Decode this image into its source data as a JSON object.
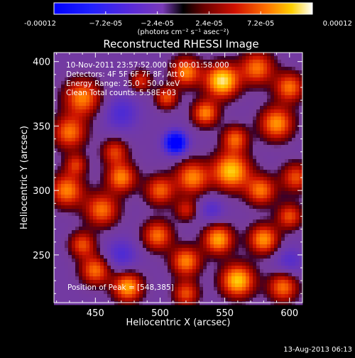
{
  "chart_data": {
    "type": "heatmap",
    "title": "Reconstructed RHESSI Image",
    "colorbar": {
      "min": -0.00012,
      "max": 0.00012,
      "tick_labels": [
        "-0.00012",
        "−7.2e-05",
        "−2.4e-05",
        "2.4e-05",
        "7.2e-05",
        "0.00012"
      ],
      "tick_values": [
        -0.00012,
        -7.2e-05,
        -2.4e-05,
        2.4e-05,
        7.2e-05,
        0.00012
      ],
      "unit_label": "(photons cm⁻² s⁻¹ asec⁻²)"
    },
    "xlabel": "Heliocentric X (arcsec)",
    "ylabel": "Heliocentric Y (arcsec)",
    "xlim": [
      418,
      610
    ],
    "ylim": [
      213,
      407
    ],
    "x_ticks": [
      450,
      500,
      550,
      600
    ],
    "y_ticks": [
      250,
      300,
      350,
      400
    ],
    "info_lines": [
      "10-Nov-2011 23:57:52.000 to 00:01:58.000",
      "Detectors: 4F 5F 6F 7F 8F, Att 0",
      "Energy Range: 25.0 - 50.0 keV",
      "Clean     Total counts: 5.58E+03"
    ],
    "peak_label": "Position of Peak = [548,385]",
    "peak": [
      548,
      385
    ],
    "min_region": [
      512,
      337
    ],
    "colormap": "blue-purple-red-yellow-white (RHESSI)"
  },
  "footer": {
    "timestamp": "13-Aug-2013 06:13"
  }
}
